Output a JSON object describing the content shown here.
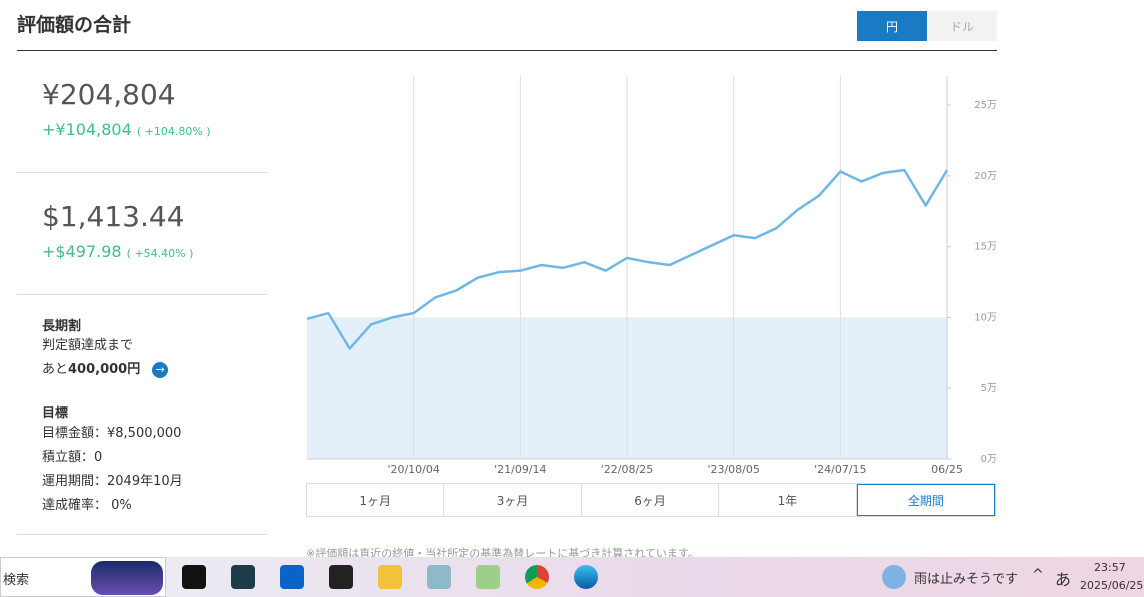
{
  "header": {
    "title": "評価額の合計",
    "tabs": [
      "円",
      "ドル"
    ]
  },
  "summary": {
    "jpy_total": "¥204,804",
    "jpy_gain": "+¥104,804",
    "jpy_gain_pct": "( +104.80% )",
    "usd_total": "$1,413.44",
    "usd_gain": "+$497.98",
    "usd_gain_pct": "( +54.40% )"
  },
  "long_term": {
    "title": "長期割",
    "line1": "判定額達成まで",
    "prefix": "あと",
    "amount": "400,000円"
  },
  "goal": {
    "title": "目標",
    "items": [
      "目標金額：¥8,500,000",
      "積立額：0",
      "運用期間：2049年10月",
      "達成確率： 0%"
    ]
  },
  "chart_data": {
    "type": "line",
    "color": "#6fb8e6",
    "principal": 100000,
    "principal_color": "#e3f0fa",
    "categories": [
      null,
      null,
      null,
      null,
      null,
      "'20/10/04",
      null,
      null,
      null,
      null,
      "'21/09/14",
      null,
      null,
      null,
      null,
      "'22/08/25",
      null,
      null,
      null,
      null,
      "'23/08/05",
      null,
      null,
      null,
      null,
      "'24/07/15",
      null,
      null,
      null,
      null,
      "06/25"
    ],
    "values": [
      99000,
      103000,
      78000,
      95000,
      100000,
      103000,
      114000,
      119000,
      128000,
      132000,
      133000,
      137000,
      135000,
      139000,
      133000,
      142000,
      139000,
      137000,
      144000,
      151000,
      158000,
      156000,
      163000,
      176000,
      186000,
      203000,
      196000,
      202000,
      204000,
      179000,
      204000
    ],
    "ylim": [
      0,
      250000
    ],
    "yticks": [
      {
        "value": 0,
        "label": "0万"
      },
      {
        "value": 50000,
        "label": "5万"
      },
      {
        "value": 100000,
        "label": "10万"
      },
      {
        "value": 150000,
        "label": "15万"
      },
      {
        "value": 200000,
        "label": "20万"
      },
      {
        "value": 250000,
        "label": "25万"
      }
    ]
  },
  "periods": [
    "1ヶ月",
    "3ヶ月",
    "6ヶ月",
    "1年",
    "全期間"
  ],
  "note": "※評価額は直近の終値・当社所定の基準為替レートに基づき計算されています。",
  "taskbar": {
    "search": "検索",
    "weather": "雨は止みそうです",
    "ime": "あ",
    "time": "23:57",
    "date": "2025/06/25"
  }
}
